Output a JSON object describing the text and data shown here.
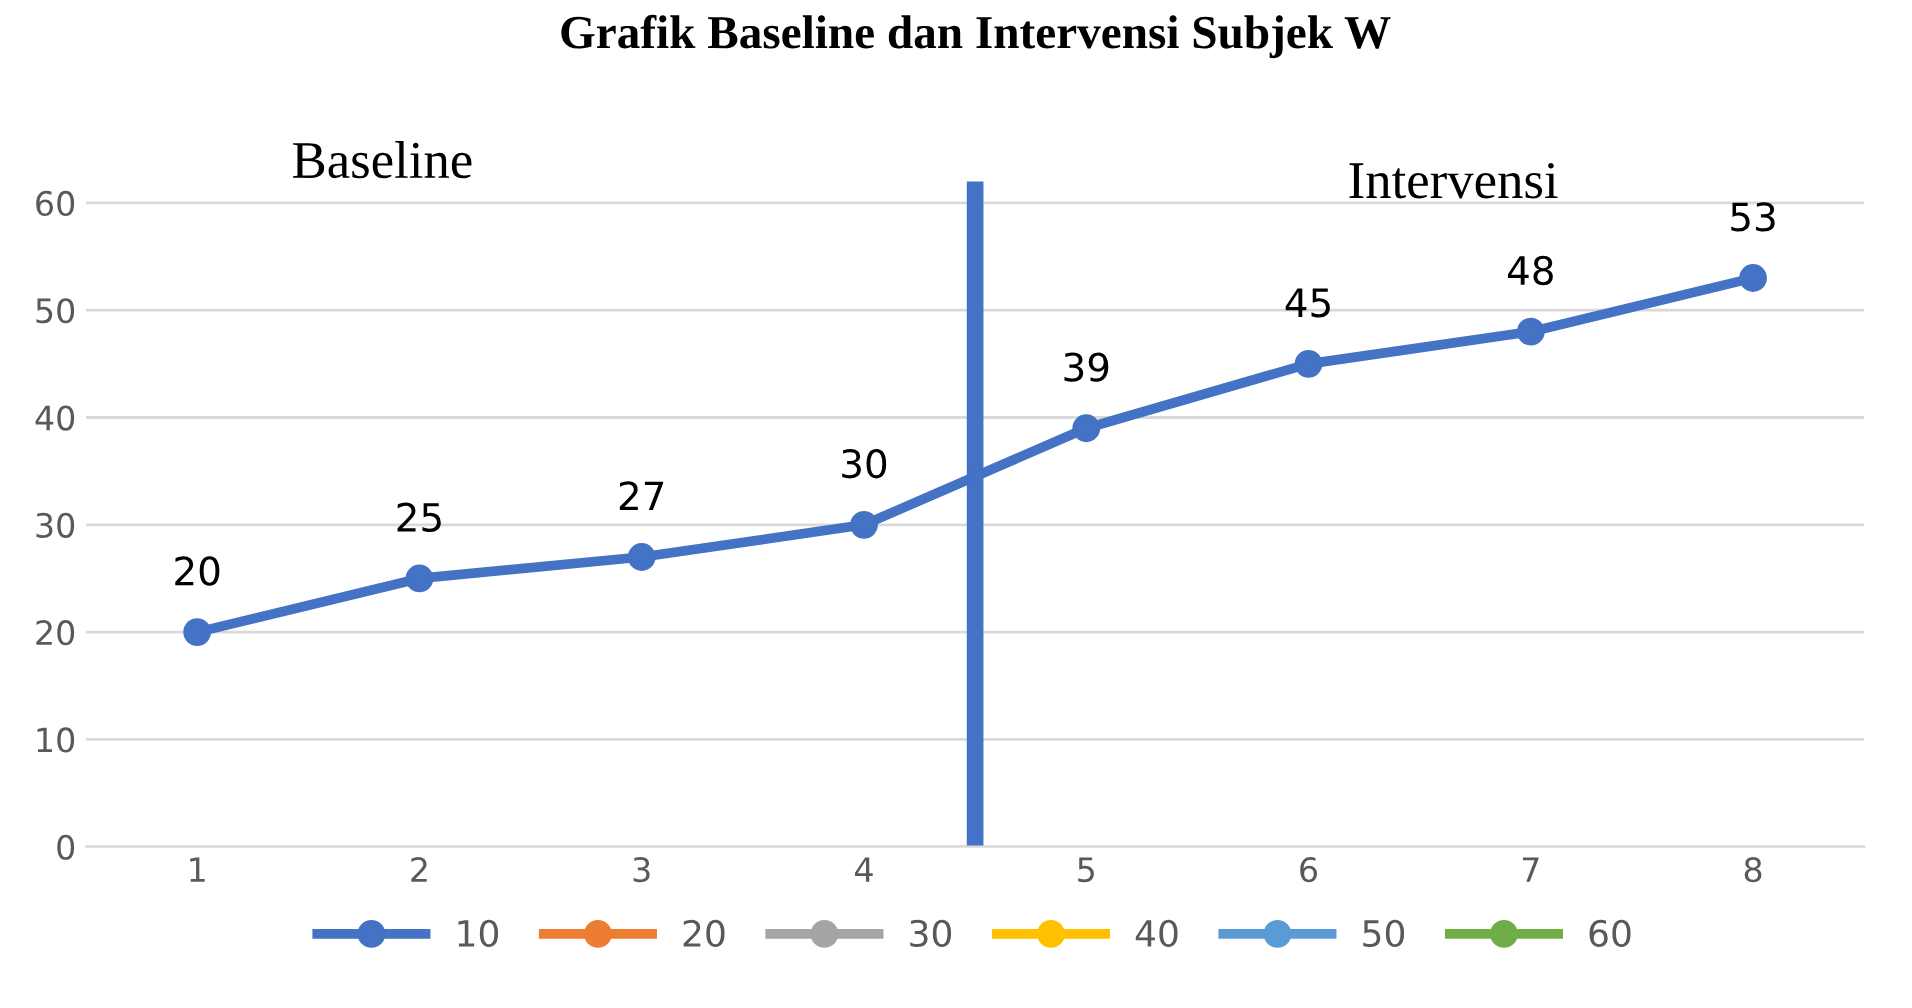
{
  "chart_data": {
    "type": "line",
    "title": "Grafik Baseline dan Intervensi Subjek W",
    "x": [
      1,
      2,
      3,
      4,
      5,
      6,
      7,
      8
    ],
    "xlim": [
      0.5,
      8.5
    ],
    "xticks": [
      1,
      2,
      3,
      4,
      5,
      6,
      7,
      8
    ],
    "ylim": [
      0,
      62
    ],
    "yticks": [
      0,
      10,
      20,
      30,
      40,
      50,
      60
    ],
    "series": [
      {
        "name": "10",
        "color": "#4472c4",
        "values": [
          20,
          25,
          27,
          30,
          39,
          45,
          48,
          53
        ]
      },
      {
        "name": "20",
        "color": "#ed7d31",
        "values": [
          null,
          null,
          null,
          null,
          null,
          null,
          null,
          null
        ]
      },
      {
        "name": "30",
        "color": "#a5a5a5",
        "values": [
          null,
          null,
          null,
          null,
          null,
          null,
          null,
          null
        ]
      },
      {
        "name": "40",
        "color": "#ffc000",
        "values": [
          null,
          null,
          null,
          null,
          null,
          null,
          null,
          null
        ]
      },
      {
        "name": "50",
        "color": "#5b9bd5",
        "values": [
          null,
          null,
          null,
          null,
          null,
          null,
          null,
          null
        ]
      },
      {
        "name": "60",
        "color": "#70ad47",
        "values": [
          null,
          null,
          null,
          null,
          null,
          null,
          null,
          null
        ]
      }
    ],
    "ref_lines": [
      {
        "axis": "x",
        "value": 4.5,
        "color": "#4472c4"
      }
    ],
    "annotations": [
      "Baseline",
      "Intervensi"
    ],
    "data_labels": true,
    "marker": "circle",
    "line_style": "solid",
    "grid": "y",
    "legend": "bottom"
  }
}
